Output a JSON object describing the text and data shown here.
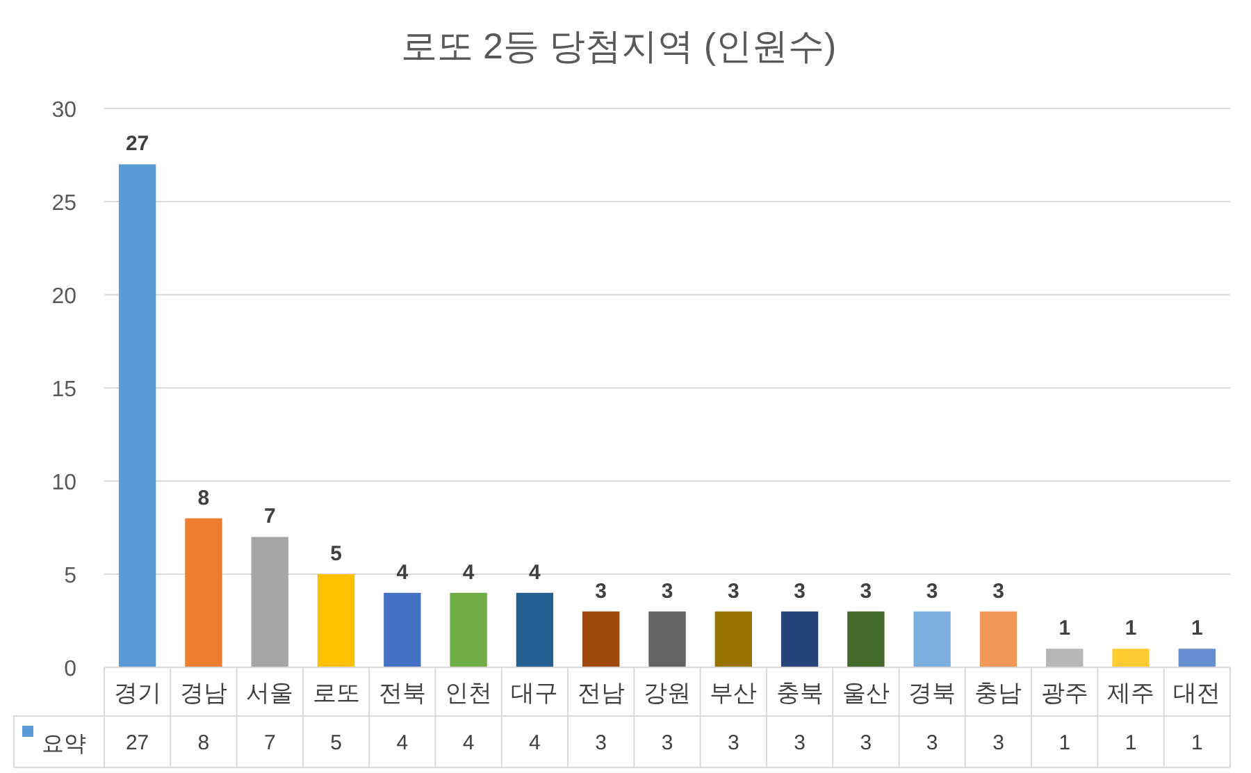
{
  "chart_data": {
    "type": "bar",
    "title": "로또 2등 당첨지역 (인원수)",
    "categories": [
      "경기",
      "경남",
      "서울",
      "로또",
      "전북",
      "인천",
      "대구",
      "전남",
      "강원",
      "부산",
      "충북",
      "울산",
      "경북",
      "충남",
      "광주",
      "제주",
      "대전"
    ],
    "series": [
      {
        "name": "요약",
        "color": "#5b9bd5",
        "colors": [
          "#5b9bd5",
          "#ed7d31",
          "#a5a5a5",
          "#ffc000",
          "#4472c4",
          "#70ad47",
          "#255e91",
          "#9e480e",
          "#636363",
          "#997300",
          "#264478",
          "#43682b",
          "#7cafdd",
          "#f1975a",
          "#b7b7b7",
          "#ffcd33",
          "#698ed0"
        ],
        "values": [
          27,
          8,
          7,
          5,
          4,
          4,
          4,
          3,
          3,
          3,
          3,
          3,
          3,
          3,
          1,
          1,
          1
        ],
        "value_labels": [
          "27",
          "8",
          "7",
          "5",
          "4",
          "4",
          "4",
          "3",
          "3",
          "3",
          "3",
          "3",
          "3",
          "3",
          "1",
          "1",
          "1"
        ]
      }
    ],
    "annotations": [
      "27",
      "8",
      "7",
      "5",
      "4",
      "4",
      "4",
      "3",
      "3",
      "3",
      "3",
      "3",
      "3",
      "3",
      "1",
      "1",
      "1"
    ],
    "ylim": [
      0,
      30
    ],
    "yticks": [
      0,
      5,
      10,
      15,
      20,
      25,
      30
    ],
    "grid": "y",
    "legend": "bottom"
  }
}
